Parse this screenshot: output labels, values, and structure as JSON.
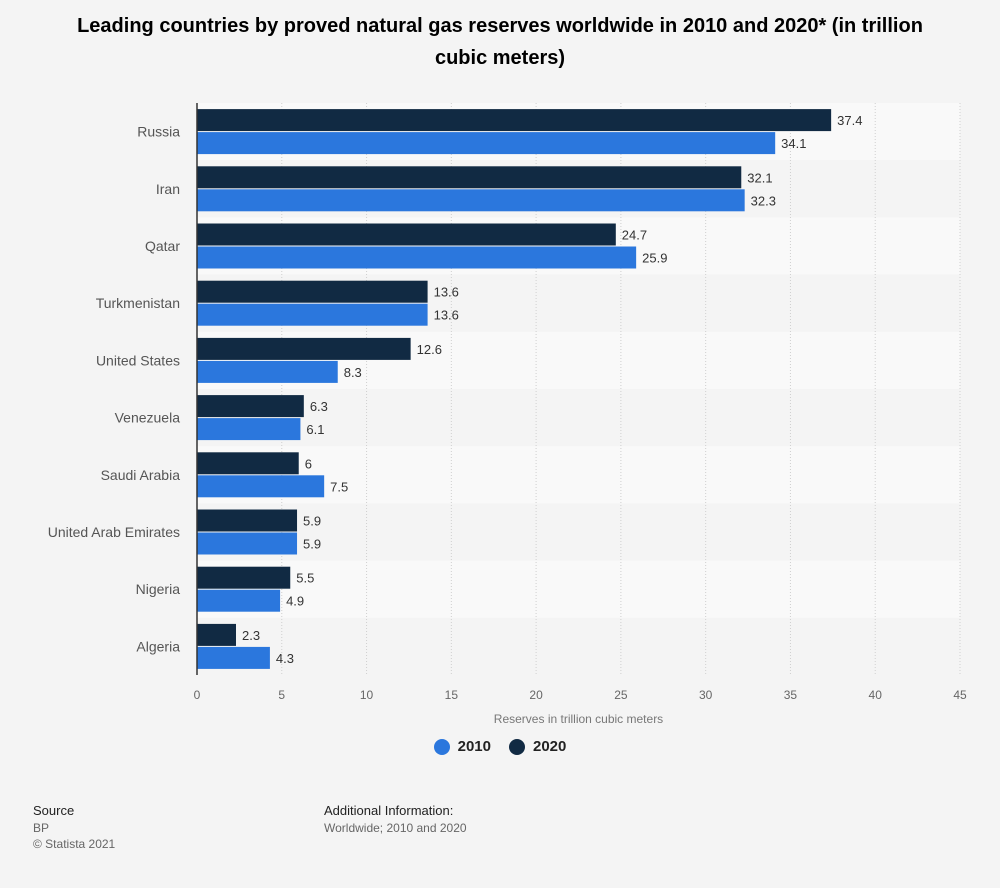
{
  "title": "Leading countries by proved natural gas reserves worldwide in 2010 and 2020* (in trillion cubic meters)",
  "chart_data": {
    "type": "bar",
    "orientation": "horizontal",
    "categories": [
      "Russia",
      "Iran",
      "Qatar",
      "Turkmenistan",
      "United States",
      "Venezuela",
      "Saudi Arabia",
      "United Arab Emirates",
      "Nigeria",
      "Algeria"
    ],
    "series": [
      {
        "name": "2020",
        "color": "#112a43",
        "values": [
          37.4,
          32.1,
          24.7,
          13.6,
          12.6,
          6.3,
          6,
          5.9,
          5.5,
          2.3
        ]
      },
      {
        "name": "2010",
        "color": "#2b77dd",
        "values": [
          34.1,
          32.3,
          25.9,
          13.6,
          8.3,
          6.1,
          7.5,
          5.9,
          4.9,
          4.3
        ]
      }
    ],
    "xlabel": "Reserves in trillion cubic meters",
    "xlim": [
      0,
      45
    ],
    "xticks": [
      0,
      5,
      10,
      15,
      20,
      25,
      30,
      35,
      40,
      45
    ],
    "grid": true,
    "legend_position": "bottom"
  },
  "legend": [
    {
      "label": "2010",
      "color": "#2b77dd"
    },
    {
      "label": "2020",
      "color": "#112a43"
    }
  ],
  "footer": {
    "source_heading": "Source",
    "source_name": "BP",
    "copyright": "© Statista 2021",
    "info_heading": "Additional Information:",
    "info_text": "Worldwide; 2010 and 2020"
  }
}
